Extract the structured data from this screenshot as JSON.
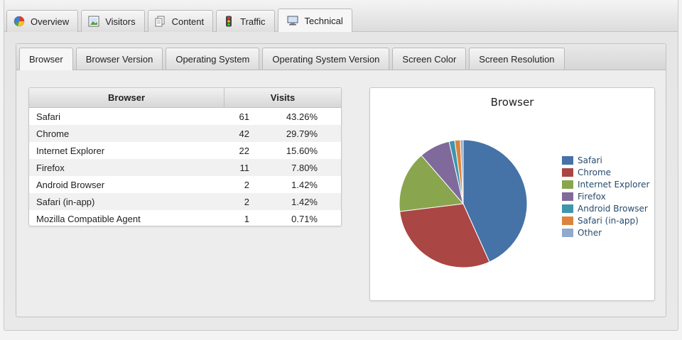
{
  "main_tabs": [
    {
      "label": "Overview",
      "icon": "pie-chart-icon"
    },
    {
      "label": "Visitors",
      "icon": "image-icon"
    },
    {
      "label": "Content",
      "icon": "documents-icon"
    },
    {
      "label": "Traffic",
      "icon": "traffic-light-icon"
    },
    {
      "label": "Technical",
      "icon": "monitor-icon",
      "active": true
    }
  ],
  "sub_tabs": [
    {
      "label": "Browser",
      "active": true
    },
    {
      "label": "Browser Version"
    },
    {
      "label": "Operating System"
    },
    {
      "label": "Operating System Version"
    },
    {
      "label": "Screen Color"
    },
    {
      "label": "Screen Resolution"
    }
  ],
  "table": {
    "headers": [
      "Browser",
      "Visits"
    ],
    "rows": [
      {
        "name": "Safari",
        "count": "61",
        "percent": "43.26%"
      },
      {
        "name": "Chrome",
        "count": "42",
        "percent": "29.79%"
      },
      {
        "name": "Internet Explorer",
        "count": "22",
        "percent": "15.60%"
      },
      {
        "name": "Firefox",
        "count": "11",
        "percent": "7.80%"
      },
      {
        "name": "Android Browser",
        "count": "2",
        "percent": "1.42%"
      },
      {
        "name": "Safari (in-app)",
        "count": "2",
        "percent": "1.42%"
      },
      {
        "name": "Mozilla Compatible Agent",
        "count": "1",
        "percent": "0.71%"
      }
    ]
  },
  "chart_data": {
    "type": "pie",
    "title": "Browser",
    "categories": [
      "Safari",
      "Chrome",
      "Internet Explorer",
      "Firefox",
      "Android Browser",
      "Safari (in-app)",
      "Other"
    ],
    "values": [
      61,
      42,
      22,
      11,
      2,
      2,
      1
    ],
    "colors": [
      "#4572a7",
      "#aa4643",
      "#89a54e",
      "#80699b",
      "#3d96ae",
      "#db843d",
      "#92a8cd"
    ],
    "legend": "right"
  }
}
